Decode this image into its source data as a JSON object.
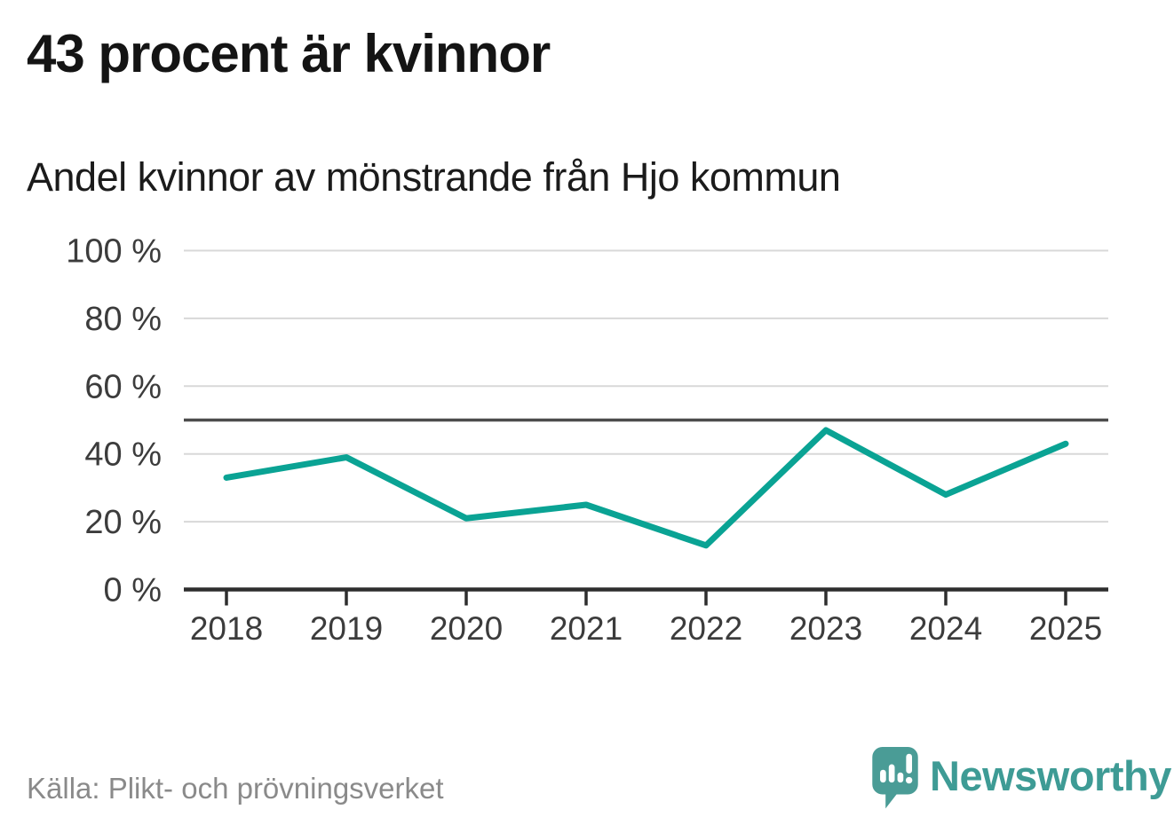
{
  "header": {
    "title": "43 procent är kvinnor",
    "subtitle": "Andel kvinnor av mönstrande från Hjo kommun"
  },
  "chart_data": {
    "type": "line",
    "title": "Andel kvinnor av mönstrande från Hjo kommun",
    "x": [
      "2018",
      "2019",
      "2020",
      "2021",
      "2022",
      "2023",
      "2024",
      "2025"
    ],
    "series": [
      {
        "name": "Andel kvinnor av mönstrande",
        "values": [
          33,
          39,
          21,
          25,
          13,
          47,
          28,
          43
        ]
      }
    ],
    "unit": "%",
    "ylim": [
      0,
      100
    ],
    "yticks": [
      0,
      20,
      40,
      60,
      80,
      100
    ],
    "ytick_format": "{v} %",
    "reference_line": {
      "value": 50
    },
    "grid": true,
    "legend_position": "none",
    "line_color": "#0aa394",
    "grid_color": "#d8d8d8",
    "axis_color": "#2e2e2e",
    "tick_label_color": "#3c3c3c",
    "reference_line_color": "#4d4d4d"
  },
  "footer": {
    "source": "Källa: Plikt- och prövningsverket",
    "brand": "Newsworthy",
    "brand_color": "#3e9b95",
    "logo_color": "#4a9c96"
  }
}
